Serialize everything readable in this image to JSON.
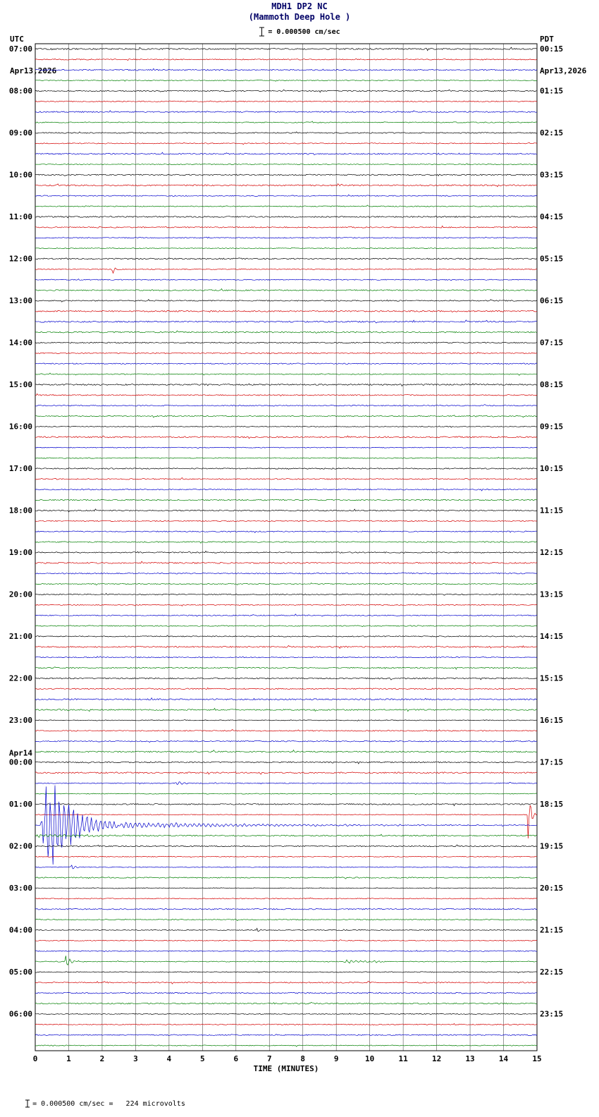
{
  "header": {
    "left_tz": "UTC",
    "left_date": "Apr13,2026",
    "right_tz": "PDT",
    "right_date": "Apr13,2026",
    "title_line1": "MDH1 DP2 NC",
    "title_line2": "(Mammoth Deep Hole )",
    "scale_label": "= 0.000500 cm/sec",
    "title_color": "#000066"
  },
  "footer": {
    "scale_text": "= 0.000500 cm/sec =",
    "microvolts": "   224 microvolts"
  },
  "chart_data": {
    "type": "line",
    "title": "MDH1 DP2 NC (Mammoth Deep Hole) helicorder seismogram",
    "rows": 96,
    "minutes_per_row": 15,
    "start_label_utc": "07:00 Apr13,2026",
    "x_axis": {
      "label": "TIME (MINUTES)",
      "min": 0,
      "max": 15,
      "tick_labels": [
        "0",
        "1",
        "2",
        "3",
        "4",
        "5",
        "6",
        "7",
        "8",
        "9",
        "10",
        "11",
        "12",
        "13",
        "14",
        "15"
      ]
    },
    "colors_cycle": [
      "#000000",
      "#d40000",
      "#0000cc",
      "#007f00"
    ],
    "left_labels": [
      {
        "row": 0,
        "text": "07:00"
      },
      {
        "row": 4,
        "text": "08:00"
      },
      {
        "row": 8,
        "text": "09:00"
      },
      {
        "row": 12,
        "text": "10:00"
      },
      {
        "row": 16,
        "text": "11:00"
      },
      {
        "row": 20,
        "text": "12:00"
      },
      {
        "row": 24,
        "text": "13:00"
      },
      {
        "row": 28,
        "text": "14:00"
      },
      {
        "row": 32,
        "text": "15:00"
      },
      {
        "row": 36,
        "text": "16:00"
      },
      {
        "row": 40,
        "text": "17:00"
      },
      {
        "row": 44,
        "text": "18:00"
      },
      {
        "row": 48,
        "text": "19:00"
      },
      {
        "row": 52,
        "text": "20:00"
      },
      {
        "row": 56,
        "text": "21:00"
      },
      {
        "row": 60,
        "text": "22:00"
      },
      {
        "row": 64,
        "text": "23:00"
      },
      {
        "row": 68,
        "text": "00:00",
        "date": "Apr14"
      },
      {
        "row": 72,
        "text": "01:00"
      },
      {
        "row": 76,
        "text": "02:00"
      },
      {
        "row": 80,
        "text": "03:00"
      },
      {
        "row": 84,
        "text": "04:00"
      },
      {
        "row": 88,
        "text": "05:00"
      },
      {
        "row": 92,
        "text": "06:00"
      }
    ],
    "right_labels": [
      {
        "row": 0,
        "text": "00:15"
      },
      {
        "row": 4,
        "text": "01:15"
      },
      {
        "row": 8,
        "text": "02:15"
      },
      {
        "row": 12,
        "text": "03:15"
      },
      {
        "row": 16,
        "text": "04:15"
      },
      {
        "row": 20,
        "text": "05:15"
      },
      {
        "row": 24,
        "text": "06:15"
      },
      {
        "row": 28,
        "text": "07:15"
      },
      {
        "row": 32,
        "text": "08:15"
      },
      {
        "row": 36,
        "text": "09:15"
      },
      {
        "row": 40,
        "text": "10:15"
      },
      {
        "row": 44,
        "text": "11:15"
      },
      {
        "row": 48,
        "text": "12:15"
      },
      {
        "row": 52,
        "text": "13:15"
      },
      {
        "row": 56,
        "text": "14:15"
      },
      {
        "row": 60,
        "text": "15:15"
      },
      {
        "row": 64,
        "text": "16:15"
      },
      {
        "row": 68,
        "text": "17:15"
      },
      {
        "row": 72,
        "text": "18:15"
      },
      {
        "row": 76,
        "text": "19:15"
      },
      {
        "row": 80,
        "text": "20:15"
      },
      {
        "row": 84,
        "text": "21:15"
      },
      {
        "row": 88,
        "text": "22:15"
      },
      {
        "row": 92,
        "text": "23:15"
      }
    ],
    "events": [
      {
        "row": 21,
        "start": 2.28,
        "end": 2.5,
        "amp": 9
      },
      {
        "row": 70,
        "start": 4.15,
        "end": 4.9,
        "amp": 3
      },
      {
        "row": 73,
        "start": 14.7,
        "end": 15,
        "amp": 33
      },
      {
        "row": 74,
        "start": 0.15,
        "end": 2.5,
        "amp": 72
      },
      {
        "row": 74,
        "start": 2.5,
        "end": 15,
        "amp": 4,
        "k": 0.22,
        "atk": 0.002
      },
      {
        "row": 75,
        "start": 0.0,
        "end": 4.0,
        "amp": 2,
        "k": 0.5,
        "atk": 0.03
      },
      {
        "row": 78,
        "start": 1.05,
        "end": 1.35,
        "amp": 7
      },
      {
        "row": 84,
        "start": 6.6,
        "end": 6.85,
        "amp": 6
      },
      {
        "row": 87,
        "start": 0.88,
        "end": 1.2,
        "amp": 14
      },
      {
        "row": 87,
        "start": 9.2,
        "end": 10.4,
        "amp": 2.5,
        "k": 1.2
      }
    ]
  }
}
